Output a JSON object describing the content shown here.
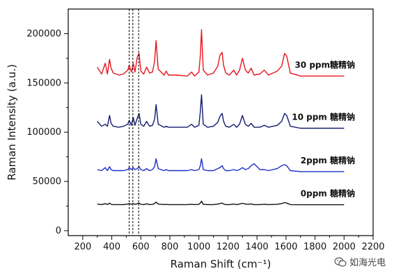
{
  "chart_data": {
    "type": "line",
    "title": "",
    "xlabel": "Raman Shift (cm⁻¹)",
    "ylabel": "Raman Intensity (a.u.)",
    "xlim": [
      100,
      2200
    ],
    "ylim": [
      -5000,
      225000
    ],
    "x_ticks": [
      200,
      400,
      600,
      800,
      1000,
      1200,
      1400,
      1600,
      1800,
      2000,
      2200
    ],
    "y_ticks": [
      0,
      50000,
      100000,
      150000,
      200000
    ],
    "reference_lines_x": [
      520,
      545,
      585
    ],
    "grid": false,
    "legend": "none",
    "series": [
      {
        "name": "30 ppm糖精钠",
        "color": "#e8141b",
        "x": [
          300,
          330,
          355,
          370,
          385,
          395,
          410,
          450,
          480,
          510,
          520,
          535,
          548,
          560,
          575,
          588,
          600,
          620,
          640,
          660,
          680,
          695,
          705,
          720,
          760,
          775,
          790,
          850,
          920,
          950,
          970,
          1000,
          1010,
          1018,
          1030,
          1060,
          1100,
          1130,
          1145,
          1160,
          1170,
          1185,
          1210,
          1240,
          1260,
          1280,
          1300,
          1320,
          1340,
          1360,
          1380,
          1420,
          1450,
          1480,
          1540,
          1570,
          1590,
          1605,
          1630,
          1700,
          1800,
          2000
        ],
        "y": [
          166000,
          159000,
          170000,
          159000,
          174000,
          165000,
          160000,
          158000,
          159000,
          163000,
          168000,
          161000,
          170000,
          161000,
          176000,
          180000,
          162000,
          159000,
          166000,
          160000,
          161000,
          172000,
          193000,
          164000,
          158000,
          162000,
          158000,
          158000,
          157000,
          161000,
          157000,
          161000,
          178000,
          204000,
          163000,
          158000,
          160000,
          167000,
          178000,
          181000,
          168000,
          160000,
          158000,
          163000,
          158000,
          163000,
          175000,
          163000,
          160000,
          165000,
          158000,
          159000,
          163000,
          158000,
          162000,
          167000,
          180000,
          177000,
          160000,
          157000,
          157000,
          157000
        ]
      },
      {
        "name": "10 ppm 糖精钠",
        "color": "#131a6e",
        "x": [
          300,
          330,
          355,
          370,
          385,
          395,
          410,
          450,
          480,
          510,
          520,
          535,
          548,
          560,
          575,
          588,
          600,
          620,
          640,
          660,
          680,
          695,
          705,
          720,
          760,
          775,
          790,
          850,
          920,
          950,
          970,
          1000,
          1010,
          1018,
          1030,
          1060,
          1100,
          1130,
          1145,
          1160,
          1170,
          1185,
          1210,
          1240,
          1260,
          1280,
          1300,
          1320,
          1340,
          1360,
          1380,
          1420,
          1450,
          1480,
          1540,
          1570,
          1590,
          1605,
          1630,
          1700,
          1800,
          2000
        ],
        "y": [
          111000,
          106000,
          108000,
          106000,
          117000,
          109000,
          106000,
          105000,
          106000,
          108000,
          112000,
          107000,
          115000,
          107000,
          114000,
          119000,
          108000,
          106000,
          111000,
          106000,
          107000,
          113000,
          128000,
          108000,
          105000,
          106000,
          105000,
          105000,
          105000,
          108000,
          105000,
          107000,
          121000,
          138000,
          108000,
          105000,
          106000,
          110000,
          116000,
          119000,
          111000,
          106000,
          105000,
          108000,
          105000,
          108000,
          117000,
          108000,
          106000,
          109000,
          105000,
          105000,
          107000,
          105000,
          107000,
          111000,
          119000,
          117000,
          106000,
          104000,
          104000,
          104000
        ]
      },
      {
        "name": "2ppm 糖精钠",
        "color": "#1c2ec9",
        "x": [
          300,
          330,
          355,
          370,
          385,
          395,
          410,
          450,
          480,
          510,
          520,
          535,
          548,
          560,
          575,
          588,
          600,
          620,
          640,
          660,
          680,
          695,
          705,
          720,
          760,
          775,
          790,
          850,
          920,
          950,
          970,
          1000,
          1010,
          1018,
          1030,
          1060,
          1100,
          1130,
          1145,
          1160,
          1170,
          1185,
          1210,
          1240,
          1260,
          1280,
          1300,
          1320,
          1340,
          1360,
          1380,
          1420,
          1450,
          1480,
          1540,
          1570,
          1590,
          1605,
          1630,
          1700,
          1800,
          2000
        ],
        "y": [
          62000,
          61000,
          64000,
          61000,
          65000,
          62000,
          61000,
          61000,
          61000,
          62000,
          64000,
          62000,
          64000,
          62000,
          63000,
          65000,
          62000,
          61000,
          63000,
          61000,
          62000,
          65000,
          73000,
          63000,
          61000,
          62000,
          61000,
          61000,
          61000,
          62000,
          61000,
          62000,
          66000,
          73000,
          62000,
          61000,
          61000,
          63000,
          64000,
          66000,
          63000,
          61000,
          61000,
          62000,
          61000,
          62000,
          64000,
          62000,
          63000,
          66000,
          68000,
          62000,
          62000,
          61000,
          63000,
          66000,
          67000,
          66000,
          61000,
          60000,
          60000,
          60000
        ]
      },
      {
        "name": "0ppm 糖精钠",
        "color": "#111111",
        "x": [
          300,
          330,
          355,
          370,
          385,
          395,
          410,
          450,
          480,
          510,
          520,
          535,
          548,
          560,
          575,
          588,
          600,
          620,
          640,
          660,
          680,
          695,
          705,
          720,
          760,
          775,
          790,
          850,
          920,
          950,
          970,
          1000,
          1010,
          1018,
          1030,
          1060,
          1100,
          1130,
          1145,
          1160,
          1170,
          1185,
          1210,
          1240,
          1260,
          1280,
          1300,
          1320,
          1340,
          1360,
          1380,
          1420,
          1450,
          1480,
          1540,
          1570,
          1590,
          1605,
          1630,
          1700,
          1800,
          2000
        ],
        "y": [
          27000,
          26500,
          27500,
          26500,
          28000,
          26800,
          26500,
          26500,
          26500,
          27000,
          27500,
          26800,
          27500,
          26800,
          27300,
          28000,
          26800,
          26500,
          27300,
          26500,
          26700,
          27500,
          29000,
          27000,
          26500,
          26700,
          26500,
          26500,
          26500,
          26800,
          26500,
          26800,
          28000,
          30000,
          26800,
          26500,
          26500,
          27000,
          27500,
          28000,
          27000,
          26500,
          26500,
          27000,
          26500,
          27000,
          27800,
          27000,
          26800,
          27200,
          26500,
          26500,
          26800,
          26500,
          26800,
          27500,
          28500,
          28000,
          26500,
          26300,
          26300,
          26300
        ]
      }
    ]
  },
  "watermark": {
    "text": "如海光电",
    "icon": "wechat-icon"
  }
}
